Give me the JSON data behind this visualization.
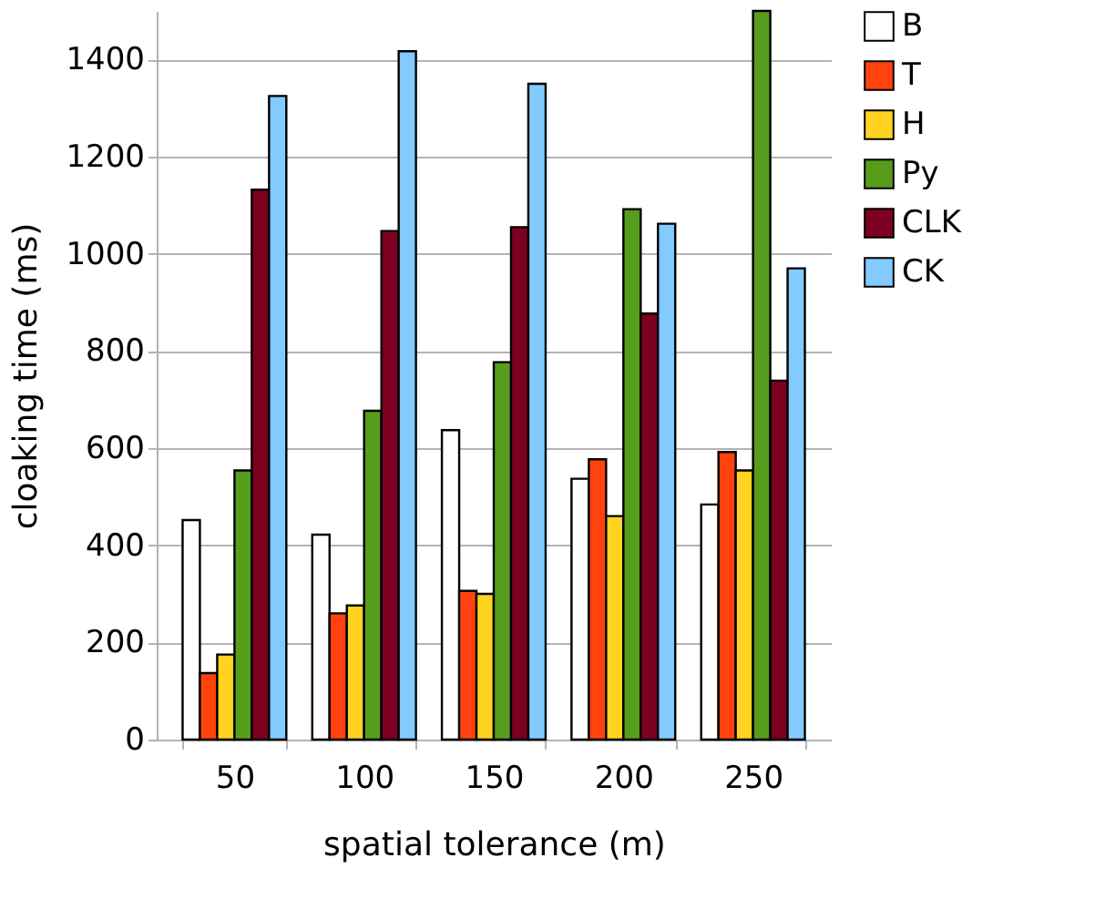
{
  "chart_data": {
    "type": "bar",
    "xlabel": "spatial tolerance (m)",
    "ylabel": "cloaking time (ms)",
    "categories": [
      "50",
      "100",
      "150",
      "200",
      "250"
    ],
    "series": [
      {
        "name": "B",
        "color": "#ffffff",
        "values": [
          452,
          422,
          637,
          537,
          484
        ]
      },
      {
        "name": "T",
        "color": "#ff420e",
        "values": [
          137,
          260,
          306,
          577,
          592
        ]
      },
      {
        "name": "H",
        "color": "#ffd320",
        "values": [
          175,
          276,
          300,
          460,
          554
        ]
      },
      {
        "name": "Py",
        "color": "#579d1c",
        "values": [
          554,
          677,
          777,
          1092,
          1500
        ]
      },
      {
        "name": "CLK",
        "color": "#7e0021",
        "values": [
          1132,
          1047,
          1055,
          877,
          739
        ]
      },
      {
        "name": "CK",
        "color": "#83caff",
        "values": [
          1325,
          1417,
          1350,
          1062,
          970
        ]
      }
    ],
    "ylim": [
      0,
      1500
    ],
    "yticks": [
      0,
      200,
      400,
      600,
      800,
      1000,
      1200,
      1400
    ],
    "grid": "y",
    "legend": "right"
  }
}
